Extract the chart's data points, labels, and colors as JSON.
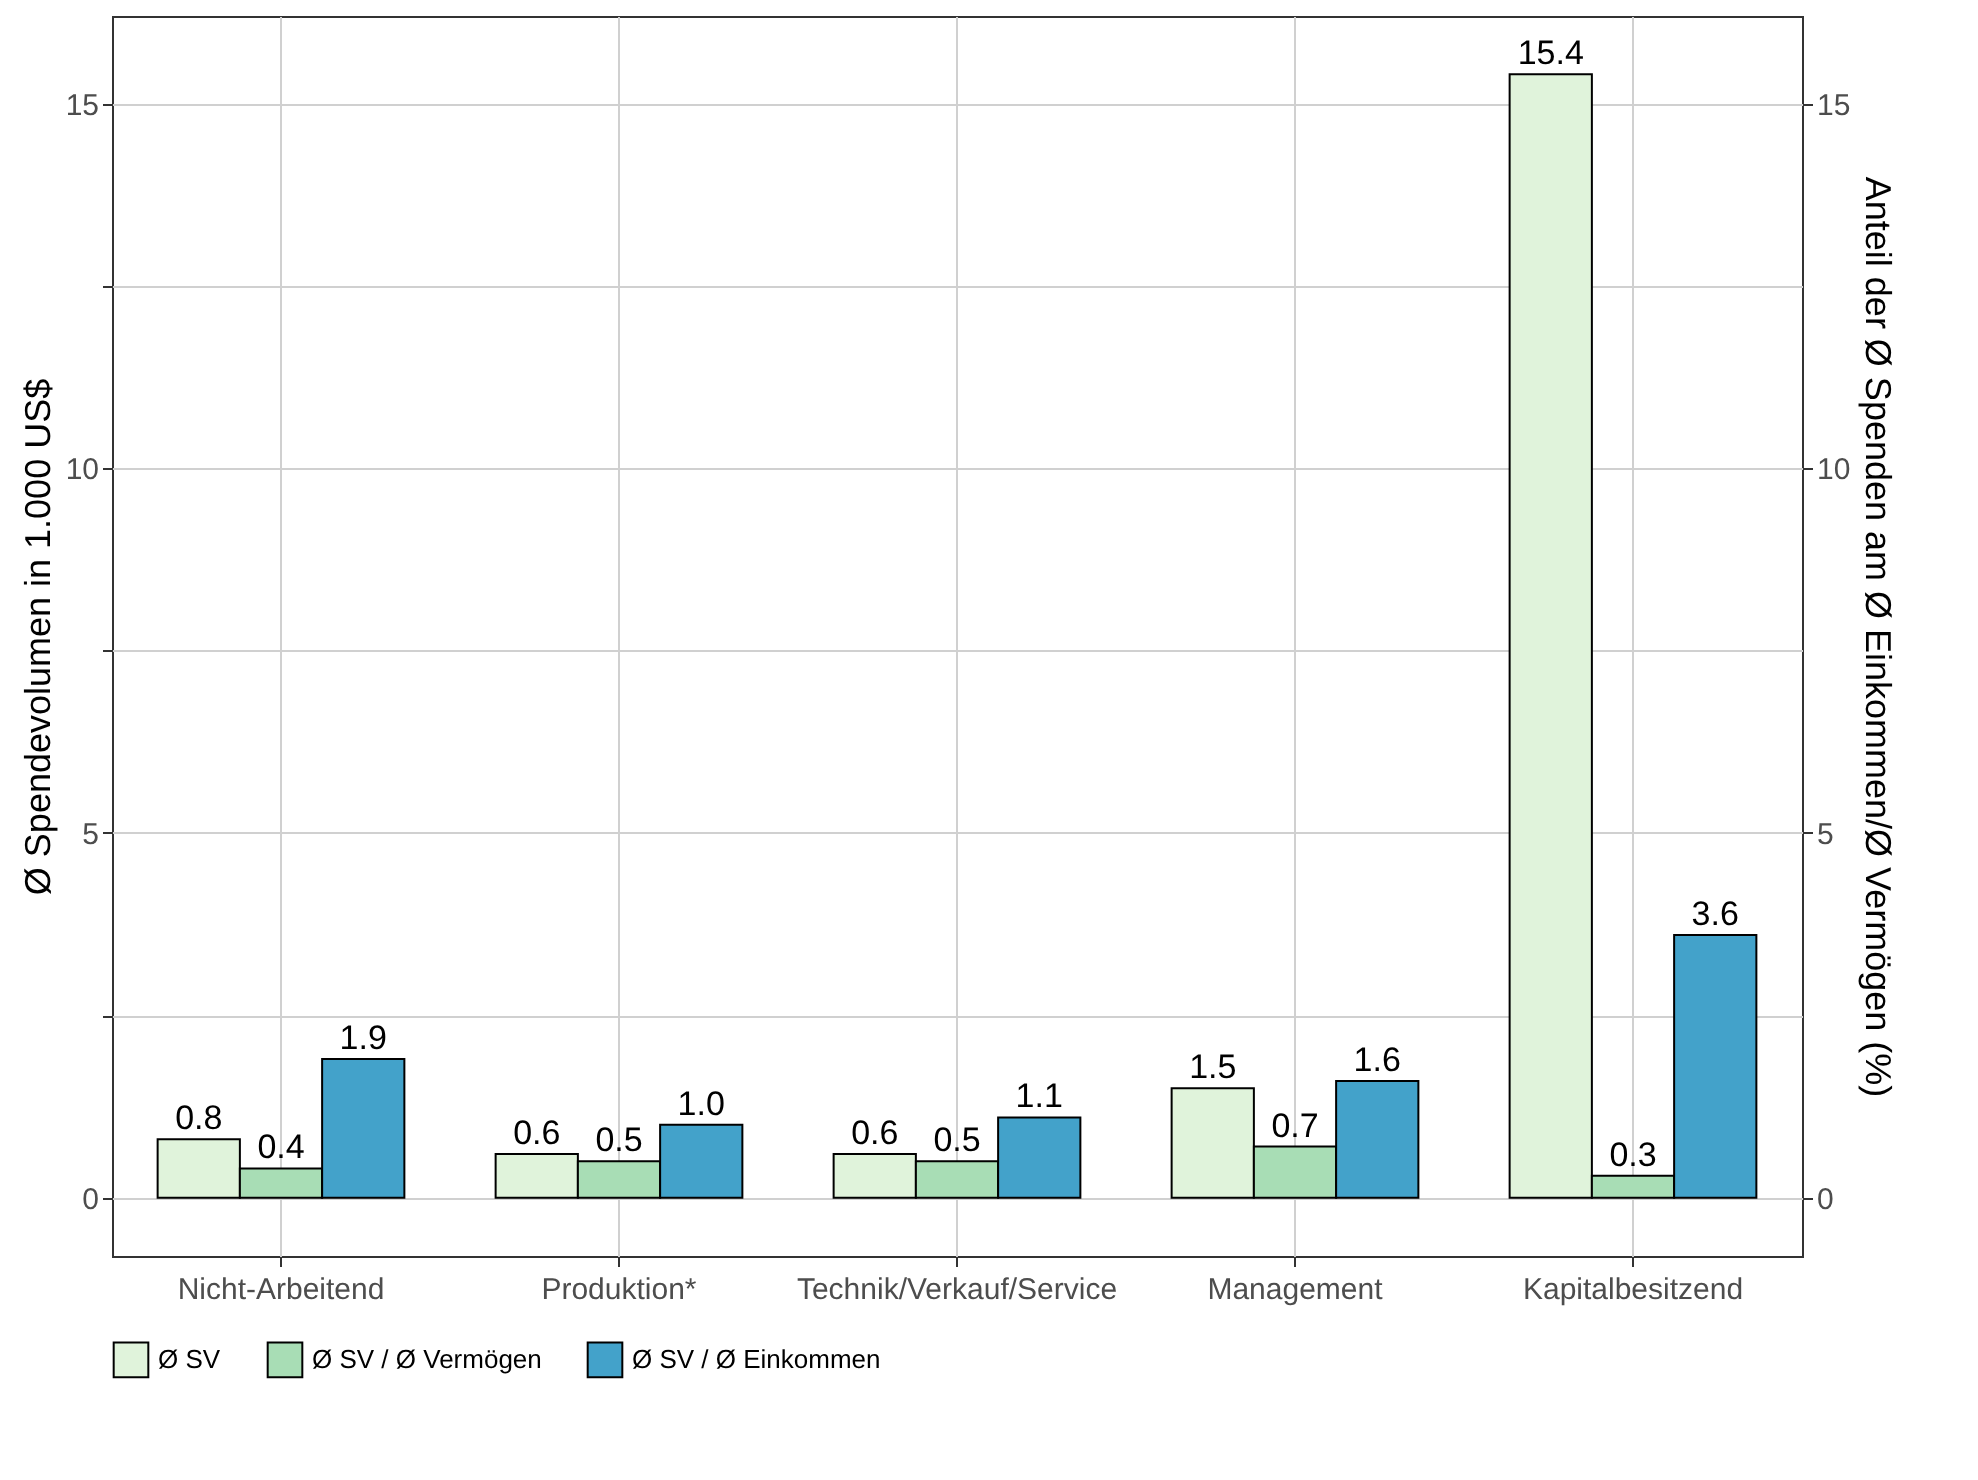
{
  "chart_data": {
    "type": "bar",
    "categories": [
      "Nicht-Arbeitend",
      "Produktion*",
      "Technik/Verkauf/Service",
      "Management",
      "Kapitalbesitzend"
    ],
    "ylabel": "Ø Spendevolumen in 1.000 US$",
    "y2label": "Anteil der Ø Spenden am Ø Einkommen/Ø Vermögen (%)",
    "series": [
      {
        "name": "Ø SV",
        "color": "#e0f3db",
        "values": [
          0.8,
          0.6,
          0.6,
          1.5,
          15.4
        ],
        "value_labels": [
          "0.8",
          "0.6",
          "0.6",
          "1.5",
          "15.4"
        ]
      },
      {
        "name": "Ø SV / Ø Vermögen",
        "color": "#a8ddb5",
        "axis": "y2",
        "values": [
          0.4,
          0.5,
          0.5,
          0.7,
          0.3
        ],
        "value_labels": [
          "0.4",
          "0.5",
          "0.5",
          "0.7",
          "0.3"
        ]
      },
      {
        "name": "Ø SV / Ø Einkommen",
        "color": "#43a2ca",
        "axis": "y2",
        "values": [
          1.9,
          1.0,
          1.1,
          1.6,
          3.6
        ],
        "value_labels": [
          "1.9",
          "1.0",
          "1.1",
          "1.6",
          "3.6"
        ]
      }
    ],
    "ylim": [
      -0.8,
      16.2
    ],
    "yticks": [
      0,
      {
        "value": 2.5,
        "label": null
      },
      5,
      {
        "value": 7.5,
        "label": null
      },
      10,
      {
        "value": 12.5,
        "label": null
      },
      15
    ],
    "y2lim": [
      -0.8,
      16.2
    ],
    "y2ticks": [
      0,
      5,
      10,
      15
    ],
    "grid": true,
    "legend": "bottom"
  }
}
